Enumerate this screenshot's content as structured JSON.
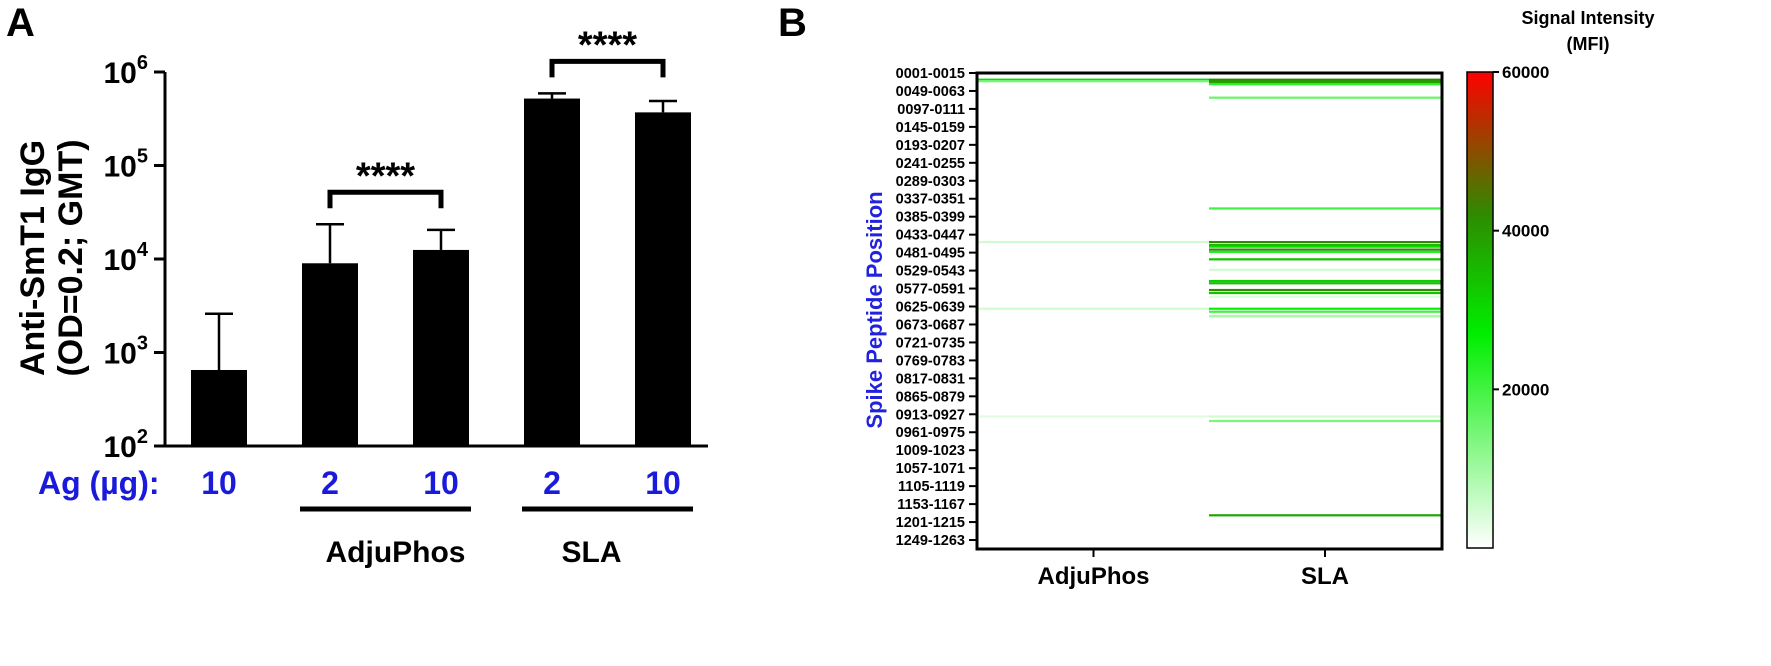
{
  "panels": {
    "a": "A",
    "b": "B"
  },
  "chart_data": [
    {
      "type": "bar",
      "panel": "A",
      "ylabel_line1": "Anti-SmT1 IgG",
      "ylabel_line2": "(OD=0.2; GMT)",
      "yscale": "log",
      "ylim": [
        100,
        1000000
      ],
      "y_ticks": [
        {
          "value": 100,
          "base": "10",
          "exp": "2"
        },
        {
          "value": 1000,
          "base": "10",
          "exp": "3"
        },
        {
          "value": 10000,
          "base": "10",
          "exp": "4"
        },
        {
          "value": 100000,
          "base": "10",
          "exp": "5"
        },
        {
          "value": 1000000,
          "base": "10",
          "exp": "6"
        }
      ],
      "ag_axis_label": "Ag  (µg):",
      "categories": [
        "10",
        "2",
        "10",
        "2",
        "10"
      ],
      "values": [
        650,
        9000,
        12500,
        520000,
        370000
      ],
      "error_upper": [
        2600,
        23500,
        20500,
        590000,
        490000
      ],
      "bar_color": "#000000",
      "groups": [
        {
          "name": "AdjuPhos",
          "bars": [
            1,
            2
          ]
        },
        {
          "name": "SLA",
          "bars": [
            3,
            4
          ]
        }
      ],
      "significance": [
        {
          "bars": [
            1,
            2
          ],
          "label": "****"
        },
        {
          "bars": [
            3,
            4
          ],
          "label": "****"
        }
      ],
      "grid": false
    },
    {
      "type": "heatmap",
      "panel": "B",
      "ylabel": "Spike Peptide Position",
      "y_ticks": [
        "0001-0015",
        "0049-0063",
        "0097-0111",
        "0145-0159",
        "0193-0207",
        "0241-0255",
        "0289-0303",
        "0337-0351",
        "0385-0399",
        "0433-0447",
        "0481-0495",
        "0529-0543",
        "0577-0591",
        "0625-0639",
        "0673-0687",
        "0721-0735",
        "0769-0783",
        "0817-0831",
        "0865-0879",
        "0913-0927",
        "0961-0975",
        "1009-1023",
        "1057-1071",
        "1105-1119",
        "1153-1167",
        "1201-1215",
        "1249-1263"
      ],
      "y_range": [
        1,
        1273
      ],
      "columns": [
        "AdjuPhos",
        "SLA"
      ],
      "colorbar": {
        "title_line1": "Signal Intensity",
        "title_line2": "(MFI)",
        "range": [
          0,
          60000
        ],
        "ticks": [
          20000,
          40000,
          60000
        ],
        "colors": [
          "#ffffff",
          "#00ee00",
          "#2e8b00",
          "#ff0000"
        ]
      },
      "rows": {
        "AdjuPhos": [
          {
            "start": 16,
            "value": 30000
          },
          {
            "start": 20,
            "value": 14000
          },
          {
            "start": 450,
            "value": 5000
          },
          {
            "start": 628,
            "value": 5000
          },
          {
            "start": 916,
            "value": 3000
          }
        ],
        "SLA": [
          {
            "start": 16,
            "value": 42000
          },
          {
            "start": 20,
            "value": 40000
          },
          {
            "start": 24,
            "value": 38000
          },
          {
            "start": 28,
            "value": 22000
          },
          {
            "start": 64,
            "value": 16000
          },
          {
            "start": 360,
            "value": 20000
          },
          {
            "start": 450,
            "value": 42000
          },
          {
            "start": 458,
            "value": 36000
          },
          {
            "start": 462,
            "value": 30000
          },
          {
            "start": 470,
            "value": 42000
          },
          {
            "start": 476,
            "value": 24000
          },
          {
            "start": 496,
            "value": 34000
          },
          {
            "start": 524,
            "value": 5000
          },
          {
            "start": 554,
            "value": 32000
          },
          {
            "start": 560,
            "value": 34000
          },
          {
            "start": 578,
            "value": 42000
          },
          {
            "start": 586,
            "value": 34000
          },
          {
            "start": 596,
            "value": 4000
          },
          {
            "start": 628,
            "value": 26000
          },
          {
            "start": 636,
            "value": 20000
          },
          {
            "start": 648,
            "value": 10000
          },
          {
            "start": 916,
            "value": 5000
          },
          {
            "start": 928,
            "value": 14000
          },
          {
            "start": 1180,
            "value": 38000
          }
        ]
      }
    }
  ]
}
